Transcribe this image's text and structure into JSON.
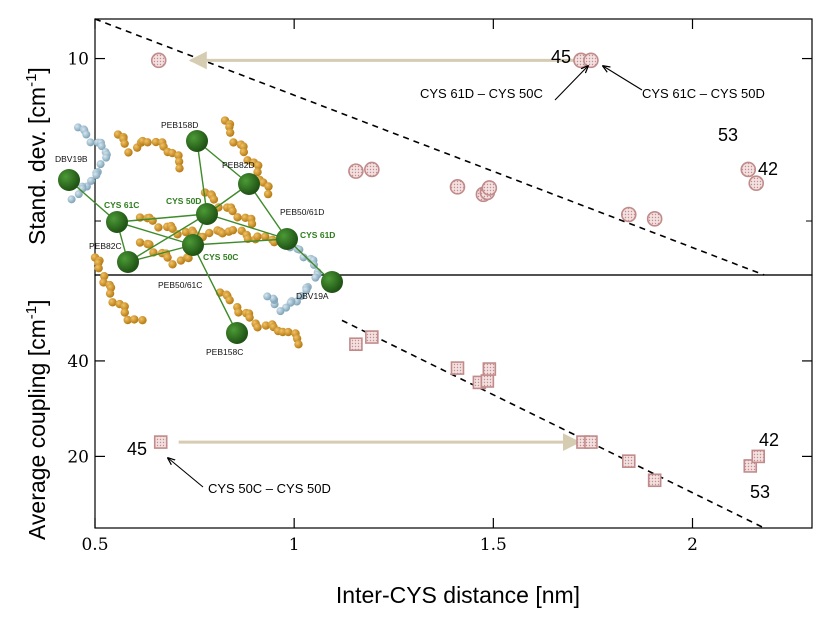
{
  "chart_data": [
    {
      "type": "scatter",
      "panel": "top",
      "ylabel": "Stand. dev. [cm",
      "ylabel_sup": "-1",
      "yscale": "log",
      "xlim": [
        0.5,
        2.3
      ],
      "ylim": [
        2.95,
        12.5
      ],
      "yticks": [
        {
          "value": 10,
          "label": "10"
        }
      ],
      "yticks_minor": [
        4
      ],
      "points": [
        {
          "x": 0.66,
          "y": 9.9
        },
        {
          "x": 1.155,
          "y": 5.3
        },
        {
          "x": 1.195,
          "y": 5.35
        },
        {
          "x": 1.41,
          "y": 4.85
        },
        {
          "x": 1.475,
          "y": 4.65
        },
        {
          "x": 1.485,
          "y": 4.7
        },
        {
          "x": 1.49,
          "y": 4.82
        },
        {
          "x": 1.72,
          "y": 9.9
        },
        {
          "x": 1.745,
          "y": 9.9
        },
        {
          "x": 1.84,
          "y": 4.15
        },
        {
          "x": 1.905,
          "y": 4.05
        },
        {
          "x": 2.14,
          "y": 5.35
        },
        {
          "x": 2.16,
          "y": 4.95
        }
      ],
      "fit_line": [
        {
          "x": 0.5,
          "y": 12.5
        },
        {
          "x": 2.18,
          "y": 2.95
        }
      ],
      "arrow": {
        "from": {
          "x": 1.715,
          "y": 9.9
        },
        "to": {
          "x": 0.74,
          "y": 9.9
        }
      },
      "annotations": {
        "label_45": "45",
        "label_53": "53",
        "label_42": "42",
        "pair_left": "CYS 61D – CYS 50C",
        "pair_right": "CYS 61C – CYS 50D"
      }
    },
    {
      "type": "scatter",
      "panel": "bottom",
      "ylabel": "Average coupling [cm",
      "ylabel_sup": "-1",
      "xlabel": "Inter-CYS distance [nm]",
      "xlim": [
        0.5,
        2.3
      ],
      "ylim": [
        5,
        58
      ],
      "yticks": [
        {
          "value": 20,
          "label": "20"
        },
        {
          "value": 40,
          "label": "40"
        }
      ],
      "xticks": [
        {
          "value": 0.5,
          "label": "0.5"
        },
        {
          "value": 1,
          "label": "1"
        },
        {
          "value": 1.5,
          "label": "1.5"
        },
        {
          "value": 2,
          "label": "2"
        }
      ],
      "points": [
        {
          "x": 0.665,
          "y": 23
        },
        {
          "x": 1.155,
          "y": 43.5
        },
        {
          "x": 1.195,
          "y": 45
        },
        {
          "x": 1.41,
          "y": 38.5
        },
        {
          "x": 1.465,
          "y": 35.5
        },
        {
          "x": 1.485,
          "y": 35.8
        },
        {
          "x": 1.49,
          "y": 38.3
        },
        {
          "x": 1.725,
          "y": 23
        },
        {
          "x": 1.745,
          "y": 23
        },
        {
          "x": 1.84,
          "y": 19
        },
        {
          "x": 1.905,
          "y": 15
        },
        {
          "x": 2.145,
          "y": 18
        },
        {
          "x": 2.165,
          "y": 20
        }
      ],
      "fit_line": [
        {
          "x": 1.12,
          "y": 48.5
        },
        {
          "x": 2.18,
          "y": 5
        }
      ],
      "arrow": {
        "from": {
          "x": 0.71,
          "y": 23
        },
        "to": {
          "x": 1.715,
          "y": 23
        }
      },
      "annotations": {
        "label_45": "45",
        "label_53": "53",
        "label_42": "42",
        "pair": "CYS 50C – CYS 50D"
      }
    }
  ],
  "inset": {
    "labels": {
      "peb158d": "PEB158D",
      "dbv19b": "DBV19B",
      "peb82d": "PEB82D",
      "cys61c": "CYS 61C",
      "cys50d": "CYS 50D",
      "peb5061d": "PEB50/61D",
      "cys61d": "CYS 61D",
      "peb82c": "PEB82C",
      "cys50c": "CYS 50C",
      "peb5061c": "PEB50/61C",
      "dbv19a": "DBV19A",
      "peb158c": "PEB158C"
    },
    "colors": {
      "node": "#2b6b1e",
      "edge": "#3f8a2a",
      "peb": "#d39a2a",
      "dbv": "#9dbdd0",
      "marker_stroke": "#c28b8b",
      "marker_fill": "#f2dede",
      "arrow": "#d6ccb2"
    }
  }
}
